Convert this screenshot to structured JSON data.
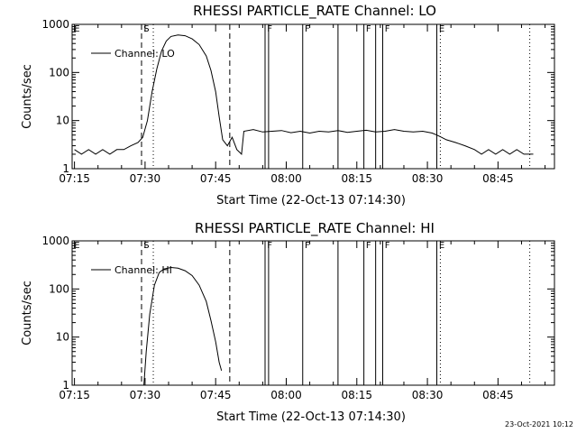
{
  "chart_data": [
    {
      "type": "line",
      "title": "RHESSI PARTICLE_RATE Channel: LO",
      "xlabel": "Start Time (22-Oct-13 07:14:30)",
      "ylabel": "Counts/sec",
      "x_ticks": [
        "07:15",
        "07:30",
        "07:45",
        "08:00",
        "08:15",
        "08:30",
        "08:45"
      ],
      "y_ticks": [
        "1",
        "10",
        "100",
        "1000"
      ],
      "xlim": [
        "07:14:30",
        "08:57:00"
      ],
      "ylim": [
        1,
        1000
      ],
      "y_scale": "log",
      "grid": false,
      "legend": {
        "label": "Channel: LO",
        "placement": "top-left"
      },
      "series": [
        {
          "name": "Channel: LO",
          "points": [
            [
              "07:15:00",
              2.5
            ],
            [
              "07:16:30",
              2.0
            ],
            [
              "07:18:00",
              2.5
            ],
            [
              "07:19:30",
              2.0
            ],
            [
              "07:21:00",
              2.5
            ],
            [
              "07:22:30",
              2.0
            ],
            [
              "07:24:00",
              2.5
            ],
            [
              "07:25:30",
              2.5
            ],
            [
              "07:27:00",
              3.0
            ],
            [
              "07:28:30",
              3.5
            ],
            [
              "07:29:30",
              4.5
            ],
            [
              "07:30:30",
              10
            ],
            [
              "07:31:30",
              40
            ],
            [
              "07:32:30",
              120
            ],
            [
              "07:33:30",
              280
            ],
            [
              "07:34:30",
              450
            ],
            [
              "07:35:30",
              560
            ],
            [
              "07:37:00",
              600
            ],
            [
              "07:38:30",
              580
            ],
            [
              "07:40:00",
              500
            ],
            [
              "07:41:30",
              380
            ],
            [
              "07:43:00",
              220
            ],
            [
              "07:44:00",
              110
            ],
            [
              "07:45:00",
              40
            ],
            [
              "07:45:45",
              12
            ],
            [
              "07:46:30",
              4.0
            ],
            [
              "07:47:30",
              3.0
            ],
            [
              "07:48:30",
              4.5
            ],
            [
              "07:49:30",
              2.5
            ],
            [
              "07:50:30",
              2.0
            ],
            [
              "07:51:00",
              6.0
            ],
            [
              "07:53:00",
              6.5
            ],
            [
              "07:55:00",
              5.8
            ],
            [
              "07:57:00",
              6.0
            ],
            [
              "07:59:00",
              6.2
            ],
            [
              "08:01:00",
              5.6
            ],
            [
              "08:03:00",
              6.0
            ],
            [
              "08:05:00",
              5.5
            ],
            [
              "08:07:00",
              6.0
            ],
            [
              "08:09:00",
              5.8
            ],
            [
              "08:11:00",
              6.2
            ],
            [
              "08:13:00",
              5.7
            ],
            [
              "08:15:00",
              6.0
            ],
            [
              "08:17:00",
              6.3
            ],
            [
              "08:19:00",
              5.8
            ],
            [
              "08:21:00",
              6.0
            ],
            [
              "08:23:00",
              6.5
            ],
            [
              "08:25:00",
              6.0
            ],
            [
              "08:27:00",
              5.8
            ],
            [
              "08:29:00",
              6.0
            ],
            [
              "08:31:00",
              5.5
            ],
            [
              "08:32:00",
              5.0
            ],
            [
              "08:33:00",
              4.5
            ],
            [
              "08:34:00",
              4.0
            ],
            [
              "08:36:00",
              3.5
            ],
            [
              "08:38:00",
              3.0
            ],
            [
              "08:40:00",
              2.5
            ],
            [
              "08:41:30",
              2.0
            ],
            [
              "08:43:00",
              2.5
            ],
            [
              "08:44:30",
              2.0
            ],
            [
              "08:46:00",
              2.5
            ],
            [
              "08:47:30",
              2.0
            ],
            [
              "08:49:00",
              2.5
            ],
            [
              "08:50:30",
              2.0
            ],
            [
              "08:52:30",
              2.0
            ]
          ]
        }
      ],
      "annotations": {
        "dashed_lines": [
          "07:29:15",
          "07:48:00"
        ],
        "dotted_lines": [
          "07:31:45",
          "08:32:45",
          "08:51:45"
        ],
        "solid_lines": [
          "07:55:30",
          "07:56:15",
          "08:03:30",
          "08:11:00",
          "08:16:30",
          "08:19:00",
          "08:20:30",
          "08:32:00"
        ],
        "flags": [
          {
            "label": "E",
            "time": "07:14:45"
          },
          {
            "label": "S",
            "time": "07:29:30"
          },
          {
            "label": "F",
            "time": "07:55:45"
          },
          {
            "label": "F",
            "time": "08:03:45"
          },
          {
            "label": "F",
            "time": "08:16:45"
          },
          {
            "label": "F",
            "time": "08:20:45"
          },
          {
            "label": "E",
            "time": "08:32:15"
          }
        ]
      }
    },
    {
      "type": "line",
      "title": "RHESSI PARTICLE_RATE Channel: HI",
      "xlabel": "Start Time (22-Oct-13 07:14:30)",
      "ylabel": "Counts/sec",
      "x_ticks": [
        "07:15",
        "07:30",
        "07:45",
        "08:00",
        "08:15",
        "08:30",
        "08:45"
      ],
      "y_ticks": [
        "1",
        "10",
        "100",
        "1000"
      ],
      "xlim": [
        "07:14:30",
        "08:57:00"
      ],
      "ylim": [
        1,
        1000
      ],
      "y_scale": "log",
      "grid": false,
      "legend": {
        "label": "Channel: HI",
        "placement": "top-left"
      },
      "series": [
        {
          "name": "Channel: HI",
          "points": [
            [
              "07:29:45",
              1.0
            ],
            [
              "07:30:15",
              5.0
            ],
            [
              "07:31:00",
              30
            ],
            [
              "07:32:00",
              120
            ],
            [
              "07:33:00",
              220
            ],
            [
              "07:34:00",
              260
            ],
            [
              "07:35:30",
              280
            ],
            [
              "07:37:00",
              270
            ],
            [
              "07:38:30",
              240
            ],
            [
              "07:40:00",
              190
            ],
            [
              "07:41:30",
              120
            ],
            [
              "07:43:00",
              55
            ],
            [
              "07:44:00",
              22
            ],
            [
              "07:45:00",
              8.0
            ],
            [
              "07:45:45",
              3.0
            ],
            [
              "07:46:15",
              2.0
            ]
          ]
        }
      ],
      "annotations": {
        "dashed_lines": [
          "07:29:15",
          "07:48:00"
        ],
        "dotted_lines": [
          "07:31:45",
          "08:32:45",
          "08:51:45"
        ],
        "solid_lines": [
          "07:55:30",
          "07:56:15",
          "08:03:30",
          "08:11:00",
          "08:16:30",
          "08:19:00",
          "08:20:30",
          "08:32:00"
        ],
        "flags": [
          {
            "label": "E",
            "time": "07:14:45"
          },
          {
            "label": "S",
            "time": "07:29:30"
          },
          {
            "label": "F",
            "time": "07:55:45"
          },
          {
            "label": "F",
            "time": "08:03:45"
          },
          {
            "label": "F",
            "time": "08:16:45"
          },
          {
            "label": "F",
            "time": "08:20:45"
          },
          {
            "label": "E",
            "time": "08:32:15"
          }
        ]
      }
    }
  ],
  "footer": {
    "timestamp": "23-Oct-2021 10:12"
  },
  "colors": {
    "background": "#ffffff",
    "ink": "#000000"
  }
}
